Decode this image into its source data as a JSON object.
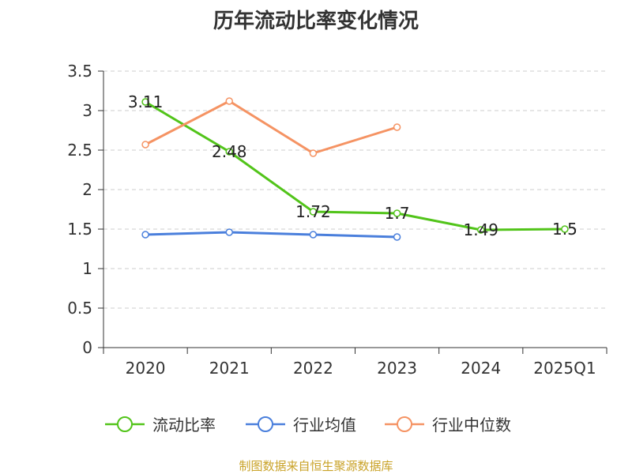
{
  "chart_data": {
    "type": "line",
    "title": "历年流动比率变化情况",
    "categories": [
      "2020",
      "2021",
      "2022",
      "2023",
      "2024",
      "2025Q1"
    ],
    "ylim": [
      0,
      3.5
    ],
    "yticks": [
      "0",
      "0.5",
      "1",
      "1.5",
      "2",
      "2.5",
      "3",
      "3.5"
    ],
    "ytick_values": [
      0,
      0.5,
      1,
      1.5,
      2,
      2.5,
      3,
      3.5
    ],
    "grid": true,
    "legend_position": "bottom",
    "series": [
      {
        "name": "流动比率",
        "color": "#52c41a",
        "values": [
          3.11,
          2.48,
          1.72,
          1.7,
          1.49,
          1.5
        ],
        "labels": [
          "3.11",
          "2.48",
          "1.72",
          "1.7",
          "1.49",
          "1.5"
        ],
        "show_labels": true
      },
      {
        "name": "行业均值",
        "color": "#4a7fdc",
        "values": [
          1.43,
          1.46,
          1.43,
          1.4,
          null,
          null
        ],
        "show_labels": false
      },
      {
        "name": "行业中位数",
        "color": "#f59363",
        "values": [
          2.57,
          3.12,
          2.46,
          2.79,
          null,
          null
        ],
        "show_labels": false
      }
    ]
  },
  "footer": {
    "source": "制图数据来自恒生聚源数据库"
  }
}
